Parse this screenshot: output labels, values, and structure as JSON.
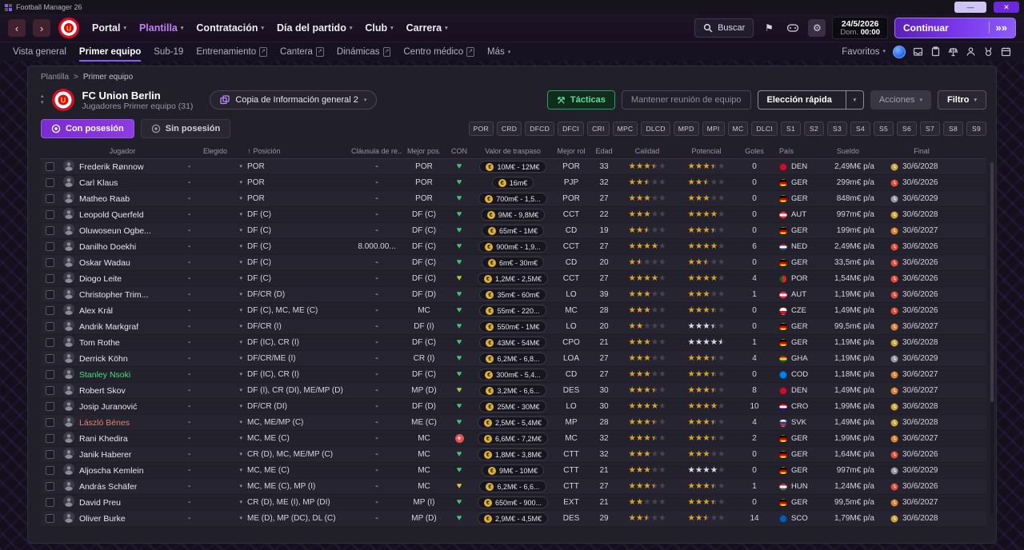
{
  "titlebar": {
    "app_title": "Football Manager 26"
  },
  "icons": {
    "chevron_down": "▾",
    "back": "‹",
    "forward": "›",
    "external": "↗",
    "window_min": "—",
    "window_close": "✕",
    "flag": "⚑",
    "gear": "⚙",
    "sort_up": "↑",
    "sep": ">",
    "collapse_up": "▴",
    "collapse_down": "▾",
    "continue_arrow": "»",
    "euro": "€",
    "plus": "+",
    "dash": "-"
  },
  "nav": {
    "menus": [
      {
        "label": "Portal",
        "active": false
      },
      {
        "label": "Plantilla",
        "active": true
      },
      {
        "label": "Contratación",
        "active": false
      },
      {
        "label": "Día del partido",
        "active": false
      },
      {
        "label": "Club",
        "active": false
      },
      {
        "label": "Carrera",
        "active": false
      }
    ],
    "search_label": "Buscar",
    "date": "24/5/2026",
    "day": "Dom.",
    "time": "00:00",
    "continue_label": "Continuar"
  },
  "subnav": {
    "items": [
      {
        "label": "Vista general",
        "active": false,
        "external": false
      },
      {
        "label": "Primer equipo",
        "active": true,
        "external": false
      },
      {
        "label": "Sub-19",
        "active": false,
        "external": false
      },
      {
        "label": "Entrenamiento",
        "active": false,
        "external": true
      },
      {
        "label": "Cantera",
        "active": false,
        "external": true
      },
      {
        "label": "Dinámicas",
        "active": false,
        "external": true
      },
      {
        "label": "Centro médico",
        "active": false,
        "external": true
      },
      {
        "label": "Más",
        "active": false,
        "external": false,
        "chevron": true
      }
    ],
    "favorites_label": "Favoritos"
  },
  "breadcrumb": [
    "Plantilla",
    "Primer equipo"
  ],
  "header": {
    "club_name": "FC Union Berlin",
    "subtitle": "Jugadores Primer equipo (31)",
    "view_dropdown": "Copia de Información general 2",
    "tactics_button": "Tácticas",
    "meeting_button": "Mantener reunión de equipo",
    "quick_pick_button": "Elección rápida",
    "actions_button": "Acciones",
    "filter_button": "Filtro"
  },
  "possession": {
    "with_label": "Con posesión",
    "without_label": "Sin posesión"
  },
  "position_chips": [
    "POR",
    "CRD",
    "DFCD",
    "DFCI",
    "CRI",
    "MPC",
    "DLCD",
    "MPD",
    "MPI",
    "MC",
    "DLCI",
    "S1",
    "S2",
    "S3",
    "S4",
    "S5",
    "S6",
    "S7",
    "S8",
    "S9"
  ],
  "colors": {
    "heart_green": "#37c871",
    "heart_yellowgreen": "#a6cc3a",
    "heart_yellow": "#e3c235",
    "med_red": "#e05252",
    "star_gold": "#dba32a",
    "star_silver": "#dcdce4",
    "contract_2026": "#e64c3a",
    "contract_2027": "#e08030",
    "contract_2028": "#d0a23a",
    "contract_2029": "#9a96a4",
    "accent_purple": "#8b5cf6"
  },
  "flag_css": {
    "DEN": "#c8102e",
    "GER": "linear-gradient(#000 33%,#dd0000 33% 66%,#ffce00 66%)",
    "AUT": "linear-gradient(#ed2939 33%,#fff 33% 66%,#ed2939 66%)",
    "NED": "linear-gradient(#ae1c28 33%,#fff 33% 66%,#21468b 66%)",
    "POR": "linear-gradient(90deg,#046a38 40%,#da291c 40%)",
    "CZE": "linear-gradient(#fff 50%,#d7141a 50%)",
    "GHA": "linear-gradient(#ce1126 33%,#fcd116 33% 66%,#006b3f 66%)",
    "COD": "#007fff",
    "CRO": "linear-gradient(#ff0000 33%,#fff 33% 66%,#171796 66%)",
    "SVK": "linear-gradient(#fff 33%,#0b4ea2 33% 66%,#ee1c25 66%)",
    "HUN": "linear-gradient(#ce2939 33%,#fff 33% 66%,#477050 66%)",
    "SCO": "#005eb8"
  },
  "table": {
    "columns": [
      "",
      "Jugador",
      "Elegido",
      "Posición",
      "Cláusula de re...",
      "Mejor pos.",
      "CON",
      "Valor de traspaso",
      "Mejor rol",
      "Edad",
      "Calidad",
      "Potencial",
      "Goles",
      "País",
      "Sueldo",
      "Final"
    ],
    "players": [
      {
        "name": "Frederik Rønnow",
        "name_color": "",
        "elegido": "-",
        "posicion": "POR",
        "clausula": "-",
        "mejor_pos": "POR",
        "con": "green",
        "valor": "10M€ - 12M€",
        "mejor_rol": "POR",
        "edad": 33,
        "calidad": 3.5,
        "potencial": 3.5,
        "pot_silver": false,
        "goles": 0,
        "pais": "DEN",
        "sueldo": "2,49M€ p/a",
        "final": "30/6/2028"
      },
      {
        "name": "Carl Klaus",
        "name_color": "",
        "elegido": "-",
        "posicion": "POR",
        "clausula": "-",
        "mejor_pos": "POR",
        "con": "green",
        "valor": "16m€",
        "mejor_rol": "PJP",
        "edad": 32,
        "calidad": 2.5,
        "potencial": 2.5,
        "pot_silver": false,
        "goles": 0,
        "pais": "GER",
        "sueldo": "299m€ p/a",
        "final": "30/6/2026"
      },
      {
        "name": "Matheo Raab",
        "name_color": "",
        "elegido": "-",
        "posicion": "POR",
        "clausula": "-",
        "mejor_pos": "POR",
        "con": "green",
        "valor": "700m€ - 1,5...",
        "mejor_rol": "POR",
        "edad": 27,
        "calidad": 3,
        "potencial": 3,
        "pot_silver": false,
        "goles": 0,
        "pais": "GER",
        "sueldo": "848m€ p/a",
        "final": "30/6/2029"
      },
      {
        "name": "Leopold Querfeld",
        "name_color": "",
        "elegido": "-",
        "posicion": "DF (C)",
        "clausula": "-",
        "mejor_pos": "DF (C)",
        "con": "green",
        "valor": "9M€ - 9,8M€",
        "mejor_rol": "CCT",
        "edad": 22,
        "calidad": 3,
        "potencial": 4,
        "pot_silver": false,
        "goles": 0,
        "pais": "AUT",
        "sueldo": "997m€ p/a",
        "final": "30/6/2028"
      },
      {
        "name": "Oluwoseun Ogbe...",
        "name_color": "",
        "elegido": "-",
        "posicion": "DF (C)",
        "clausula": "-",
        "mejor_pos": "DF (C)",
        "con": "green",
        "valor": "65m€ - 1M€",
        "mejor_rol": "CD",
        "edad": 19,
        "calidad": 2.5,
        "potencial": 3.5,
        "pot_silver": false,
        "goles": 0,
        "pais": "GER",
        "sueldo": "199m€ p/a",
        "final": "30/6/2027"
      },
      {
        "name": "Danilho Doekhi",
        "name_color": "",
        "elegido": "-",
        "posicion": "DF (C)",
        "clausula": "8.000.00...",
        "mejor_pos": "DF (C)",
        "con": "green",
        "valor": "900m€ - 1,9...",
        "mejor_rol": "CCT",
        "edad": 27,
        "calidad": 4,
        "potencial": 4,
        "pot_silver": false,
        "goles": 6,
        "pais": "NED",
        "sueldo": "2,49M€ p/a",
        "final": "30/6/2026"
      },
      {
        "name": "Oskar Wadau",
        "name_color": "",
        "elegido": "-",
        "posicion": "DF (C)",
        "clausula": "-",
        "mejor_pos": "DF (C)",
        "con": "green",
        "valor": "6m€ - 30m€",
        "mejor_rol": "CD",
        "edad": 20,
        "calidad": 1.5,
        "potencial": 2.5,
        "pot_silver": false,
        "goles": 0,
        "pais": "GER",
        "sueldo": "33,5m€ p/a",
        "final": "30/6/2026"
      },
      {
        "name": "Diogo Leite",
        "name_color": "",
        "elegido": "-",
        "posicion": "DF (C)",
        "clausula": "-",
        "mejor_pos": "DF (C)",
        "con": "yellowgreen",
        "valor": "1,2M€ - 2,5M€",
        "mejor_rol": "CCT",
        "edad": 27,
        "calidad": 4,
        "potencial": 4,
        "pot_silver": false,
        "goles": 4,
        "pais": "POR",
        "sueldo": "1,54M€ p/a",
        "final": "30/6/2026"
      },
      {
        "name": "Christopher Trim...",
        "name_color": "",
        "elegido": "-",
        "posicion": "DF/CR (D)",
        "clausula": "-",
        "mejor_pos": "DF (D)",
        "con": "green",
        "valor": "35m€ - 60m€",
        "mejor_rol": "LO",
        "edad": 39,
        "calidad": 3,
        "potencial": 3,
        "pot_silver": false,
        "goles": 1,
        "pais": "AUT",
        "sueldo": "1,19M€ p/a",
        "final": "30/6/2026"
      },
      {
        "name": "Alex Král",
        "name_color": "",
        "elegido": "-",
        "posicion": "DF (C), MC, ME (C)",
        "clausula": "-",
        "mejor_pos": "MC",
        "con": "green",
        "valor": "55m€ - 220...",
        "mejor_rol": "MC",
        "edad": 28,
        "calidad": 3,
        "potencial": 3.5,
        "pot_silver": false,
        "goles": 0,
        "pais": "CZE",
        "sueldo": "1,49M€ p/a",
        "final": "30/6/2026"
      },
      {
        "name": "Andrik Markgraf",
        "name_color": "",
        "elegido": "-",
        "posicion": "DF/CR (I)",
        "clausula": "-",
        "mejor_pos": "DF (I)",
        "con": "green",
        "valor": "550m€ - 1M€",
        "mejor_rol": "LO",
        "edad": 20,
        "calidad": 2,
        "potencial": 3.5,
        "pot_silver": true,
        "goles": 0,
        "pais": "GER",
        "sueldo": "99,5m€ p/a",
        "final": "30/6/2027"
      },
      {
        "name": "Tom Rothe",
        "name_color": "",
        "elegido": "-",
        "posicion": "DF (IC), CR (I)",
        "clausula": "-",
        "mejor_pos": "DF (C)",
        "con": "green",
        "valor": "43M€ - 54M€",
        "mejor_rol": "CPO",
        "edad": 21,
        "calidad": 3,
        "potencial": 4.5,
        "pot_silver": true,
        "goles": 1,
        "pais": "GER",
        "sueldo": "1,19M€ p/a",
        "final": "30/6/2028"
      },
      {
        "name": "Derrick Köhn",
        "name_color": "",
        "elegido": "-",
        "posicion": "DF/CR/ME (I)",
        "clausula": "-",
        "mejor_pos": "CR (I)",
        "con": "green",
        "valor": "6,2M€ - 6,8...",
        "mejor_rol": "LOA",
        "edad": 27,
        "calidad": 3,
        "potencial": 3.5,
        "pot_silver": false,
        "goles": 4,
        "pais": "GHA",
        "sueldo": "1,19M€ p/a",
        "final": "30/6/2029"
      },
      {
        "name": "Stanley Nsoki",
        "name_color": "green",
        "elegido": "-",
        "posicion": "DF (IC), CR (I)",
        "clausula": "-",
        "mejor_pos": "DF (C)",
        "con": "green",
        "valor": "300m€ - 5,4...",
        "mejor_rol": "CD",
        "edad": 27,
        "calidad": 3,
        "potencial": 3.5,
        "pot_silver": false,
        "goles": 0,
        "pais": "COD",
        "sueldo": "1,18M€ p/a",
        "final": "30/6/2027"
      },
      {
        "name": "Robert Skov",
        "name_color": "",
        "elegido": "-",
        "posicion": "DF (I), CR (DI), ME/MP (D)",
        "clausula": "-",
        "mejor_pos": "MP (D)",
        "con": "yellowgreen",
        "valor": "3,2M€ - 6,6...",
        "mejor_rol": "DES",
        "edad": 30,
        "calidad": 3.5,
        "potencial": 3.5,
        "pot_silver": false,
        "goles": 8,
        "pais": "DEN",
        "sueldo": "1,49M€ p/a",
        "final": "30/6/2027"
      },
      {
        "name": "Josip Juranović",
        "name_color": "",
        "elegido": "-",
        "posicion": "DF/CR (DI)",
        "clausula": "-",
        "mejor_pos": "DF (D)",
        "con": "green",
        "valor": "25M€ - 30M€",
        "mejor_rol": "LO",
        "edad": 30,
        "calidad": 4,
        "potencial": 4,
        "pot_silver": false,
        "goles": 10,
        "pais": "CRO",
        "sueldo": "1,99M€ p/a",
        "final": "30/6/2028"
      },
      {
        "name": "László Bénes",
        "name_color": "orange",
        "elegido": "-",
        "posicion": "MC, ME/MP (C)",
        "clausula": "-",
        "mejor_pos": "ME (C)",
        "con": "green",
        "valor": "2,5M€ - 5,4M€",
        "mejor_rol": "MP",
        "edad": 28,
        "calidad": 3.5,
        "potencial": 3.5,
        "pot_silver": false,
        "goles": 4,
        "pais": "SVK",
        "sueldo": "1,49M€ p/a",
        "final": "30/6/2028"
      },
      {
        "name": "Rani Khedira",
        "name_color": "",
        "elegido": "-",
        "posicion": "MC, ME (C)",
        "clausula": "-",
        "mejor_pos": "MC",
        "con": "redplus",
        "valor": "6,6M€ - 7,2M€",
        "mejor_rol": "MC",
        "edad": 32,
        "calidad": 3.5,
        "potencial": 3.5,
        "pot_silver": false,
        "goles": 2,
        "pais": "GER",
        "sueldo": "1,99M€ p/a",
        "final": "30/6/2027"
      },
      {
        "name": "Janik Haberer",
        "name_color": "",
        "elegido": "-",
        "posicion": "CR (D), MC, ME/MP (C)",
        "clausula": "-",
        "mejor_pos": "MC",
        "con": "green",
        "valor": "1,8M€ - 3,8M€",
        "mejor_rol": "CTT",
        "edad": 32,
        "calidad": 3,
        "potencial": 3,
        "pot_silver": false,
        "goles": 0,
        "pais": "GER",
        "sueldo": "1,64M€ p/a",
        "final": "30/6/2026"
      },
      {
        "name": "Aljoscha Kemlein",
        "name_color": "",
        "elegido": "-",
        "posicion": "MC, ME (C)",
        "clausula": "-",
        "mejor_pos": "MC",
        "con": "green",
        "valor": "9M€ - 10M€",
        "mejor_rol": "CTT",
        "edad": 21,
        "calidad": 3,
        "potencial": 4,
        "pot_silver": true,
        "goles": 0,
        "pais": "GER",
        "sueldo": "997m€ p/a",
        "final": "30/6/2029"
      },
      {
        "name": "András Schäfer",
        "name_color": "",
        "elegido": "-",
        "posicion": "MC, ME (C), MP (I)",
        "clausula": "-",
        "mejor_pos": "MC",
        "con": "yellow",
        "valor": "6,2M€ - 6,6...",
        "mejor_rol": "CTT",
        "edad": 27,
        "calidad": 3.5,
        "potencial": 3.5,
        "pot_silver": false,
        "goles": 1,
        "pais": "HUN",
        "sueldo": "1,24M€ p/a",
        "final": "30/6/2026"
      },
      {
        "name": "David Preu",
        "name_color": "",
        "elegido": "-",
        "posicion": "CR (D), ME (I), MP (DI)",
        "clausula": "-",
        "mejor_pos": "MP (I)",
        "con": "green",
        "valor": "650m€ - 900...",
        "mejor_rol": "EXT",
        "edad": 21,
        "calidad": 2,
        "potencial": 3.5,
        "pot_silver": false,
        "goles": 0,
        "pais": "GER",
        "sueldo": "99,5m€ p/a",
        "final": "30/6/2027"
      },
      {
        "name": "Oliver Burke",
        "name_color": "",
        "elegido": "-",
        "posicion": "ME (D), MP (DC), DL (C)",
        "clausula": "-",
        "mejor_pos": "MP (D)",
        "con": "green",
        "valor": "2,9M€ - 4,5M€",
        "mejor_rol": "DES",
        "edad": 29,
        "calidad": 2.5,
        "potencial": 2.5,
        "pot_silver": false,
        "goles": 14,
        "pais": "SCO",
        "sueldo": "1,79M€ p/a",
        "final": "30/6/2028"
      }
    ]
  }
}
